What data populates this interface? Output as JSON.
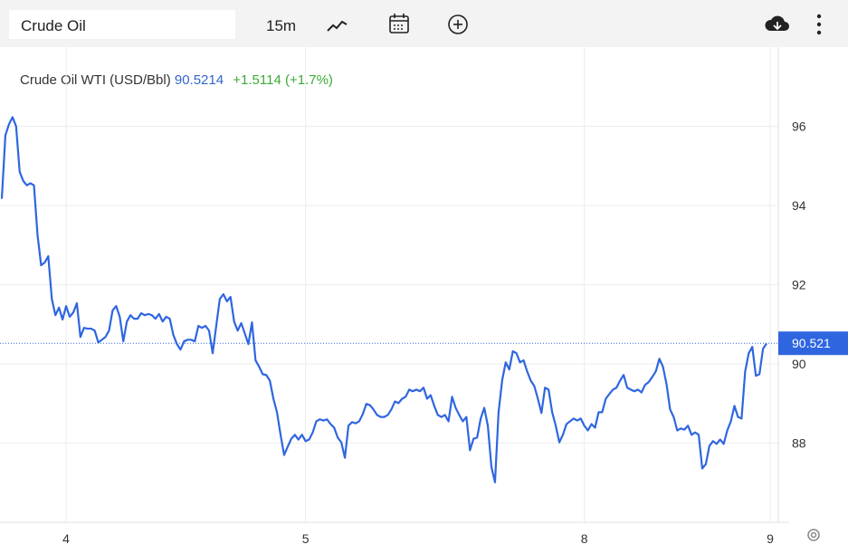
{
  "toolbar": {
    "search": "Crude Oil",
    "interval": "15m"
  },
  "chart_data": {
    "type": "line",
    "title": "Crude Oil WTI (USD/Bbl)",
    "price": "90.5214",
    "change": "+1.5114",
    "change_pct": "(+1.7%)",
    "color": "#2f66e0",
    "last_value": 90.521,
    "ylim": [
      86,
      98
    ],
    "yticks": [
      88,
      90,
      92,
      94,
      96
    ],
    "grid": true,
    "categories": [
      null,
      null,
      null,
      null,
      null,
      null,
      null,
      null,
      null,
      null,
      null,
      null,
      null,
      null,
      null,
      null,
      null,
      null,
      "4",
      null,
      null,
      null,
      null,
      null,
      null,
      null,
      null,
      null,
      null,
      null,
      null,
      null,
      null,
      null,
      null,
      null,
      null,
      null,
      null,
      null,
      null,
      null,
      null,
      null,
      null,
      null,
      null,
      null,
      null,
      null,
      null,
      null,
      null,
      null,
      null,
      null,
      null,
      null,
      null,
      null,
      null,
      null,
      null,
      null,
      null,
      null,
      null,
      null,
      null,
      null,
      null,
      null,
      null,
      null,
      null,
      null,
      null,
      null,
      null,
      null,
      null,
      null,
      null,
      null,
      null,
      "5",
      null,
      null,
      null,
      null,
      null,
      null,
      null,
      null,
      null,
      null,
      null,
      null,
      null,
      null,
      null,
      null,
      null,
      null,
      null,
      null,
      null,
      null,
      null,
      null,
      null,
      null,
      null,
      null,
      null,
      null,
      null,
      null,
      null,
      null,
      null,
      null,
      null,
      null,
      null,
      null,
      null,
      null,
      null,
      null,
      null,
      null,
      null,
      null,
      null,
      null,
      null,
      null,
      null,
      null,
      null,
      null,
      null,
      null,
      null,
      null,
      null,
      null,
      null,
      null,
      null,
      null,
      null,
      null,
      null,
      null,
      null,
      null,
      null,
      null,
      null,
      null,
      null,
      "8",
      null,
      null,
      null,
      null,
      null,
      null,
      null,
      null,
      null,
      null,
      null,
      null,
      null,
      null,
      null,
      null,
      null,
      null,
      null,
      null,
      null,
      null,
      null,
      null,
      null,
      null,
      null,
      null,
      null,
      null,
      null,
      null,
      null,
      null,
      null,
      null,
      null,
      null,
      null,
      null,
      null,
      null,
      null,
      null,
      null,
      null,
      null,
      null,
      null,
      null,
      null,
      "9"
    ],
    "values": [
      94.17,
      95.77,
      96.05,
      96.23,
      96.0,
      94.85,
      94.62,
      94.51,
      94.56,
      94.51,
      93.25,
      92.49,
      92.56,
      92.72,
      91.64,
      91.23,
      91.42,
      91.12,
      91.46,
      91.19,
      91.3,
      91.53,
      90.68,
      90.91,
      90.89,
      90.89,
      90.84,
      90.54,
      90.61,
      90.68,
      90.84,
      91.35,
      91.46,
      91.19,
      90.57,
      91.07,
      91.23,
      91.14,
      91.14,
      91.28,
      91.23,
      91.26,
      91.23,
      91.14,
      91.26,
      91.07,
      91.19,
      91.14,
      90.73,
      90.5,
      90.36,
      90.57,
      90.61,
      90.61,
      90.57,
      90.96,
      90.91,
      90.96,
      90.84,
      90.27,
      90.96,
      91.64,
      91.76,
      91.58,
      91.69,
      91.07,
      90.84,
      91.03,
      90.77,
      90.5,
      91.05,
      90.09,
      89.93,
      89.74,
      89.72,
      89.58,
      89.12,
      88.78,
      88.21,
      87.7,
      87.91,
      88.11,
      88.21,
      88.09,
      88.21,
      88.05,
      88.09,
      88.27,
      88.55,
      88.6,
      88.57,
      88.6,
      88.48,
      88.39,
      88.14,
      88.02,
      87.63,
      88.44,
      88.53,
      88.5,
      88.55,
      88.73,
      88.99,
      88.96,
      88.85,
      88.71,
      88.66,
      88.66,
      88.71,
      88.85,
      89.05,
      89.01,
      89.12,
      89.17,
      89.35,
      89.31,
      89.35,
      89.31,
      89.4,
      89.12,
      89.21,
      88.94,
      88.71,
      88.66,
      88.71,
      88.55,
      89.17,
      88.89,
      88.71,
      88.55,
      88.66,
      87.82,
      88.11,
      88.14,
      88.62,
      88.89,
      88.44,
      87.4,
      87.01,
      88.78,
      89.58,
      90.04,
      89.86,
      90.32,
      90.27,
      90.04,
      90.09,
      89.81,
      89.58,
      89.44,
      89.12,
      88.76,
      89.4,
      89.35,
      88.78,
      88.44,
      88.02,
      88.21,
      88.48,
      88.55,
      88.62,
      88.57,
      88.62,
      88.44,
      88.32,
      88.48,
      88.39,
      88.78,
      88.78,
      89.12,
      89.24,
      89.35,
      89.4,
      89.58,
      89.72,
      89.4,
      89.35,
      89.31,
      89.35,
      89.28,
      89.47,
      89.54,
      89.67,
      89.81,
      90.13,
      89.93,
      89.49,
      88.85,
      88.66,
      88.32,
      88.37,
      88.34,
      88.44,
      88.21,
      88.27,
      88.21,
      87.36,
      87.47,
      87.93,
      88.05,
      87.98,
      88.09,
      87.98,
      88.32,
      88.55,
      88.94,
      88.66,
      88.62,
      89.81,
      90.27,
      90.43,
      89.7,
      89.74,
      90.38,
      90.52,
      null
    ]
  }
}
